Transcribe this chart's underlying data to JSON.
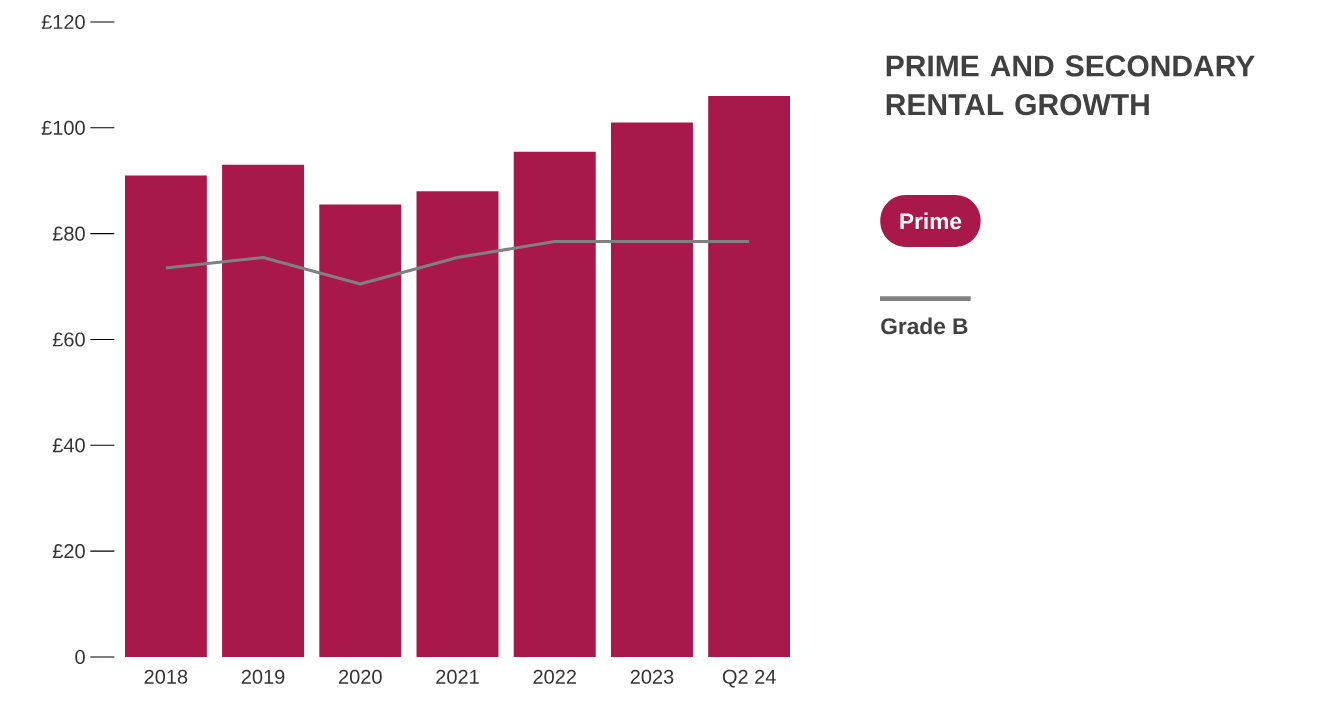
{
  "chart_data": {
    "type": "bar",
    "title": "PRIME AND SECONDARY RENTAL GROWTH",
    "categories": [
      "2018",
      "2019",
      "2020",
      "2021",
      "2022",
      "2023",
      "Q2 24"
    ],
    "series": [
      {
        "name": "Prime",
        "color": "#a8184a",
        "values": [
          91,
          93,
          85.5,
          88,
          95.5,
          101,
          106
        ]
      },
      {
        "name": "Grade B",
        "type": "line",
        "color": "#808080",
        "values": [
          73.5,
          75.5,
          70.5,
          75.5,
          78.5,
          78.5,
          78.5
        ]
      }
    ],
    "ylim": [
      0,
      120
    ],
    "yticks": [
      0,
      {
        "value": 20,
        "label": "£20"
      },
      {
        "value": 40,
        "label": "£40"
      },
      {
        "value": 60,
        "label": "£60"
      },
      {
        "value": 80,
        "label": "£80"
      },
      {
        "value": 100,
        "label": "£100"
      },
      {
        "value": 120,
        "label": "£120"
      }
    ],
    "legend": "right"
  }
}
